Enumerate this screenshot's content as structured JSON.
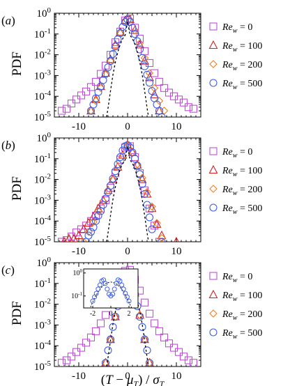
{
  "chart_data": [
    {
      "type": "scatter",
      "panel": "(a)",
      "panel_prefix": "(",
      "panel_letter": "a",
      "panel_suffix": ")",
      "ylabel": "PDF",
      "xlabel": "",
      "xlim": [
        -15,
        15
      ],
      "ylim": [
        1e-05,
        1
      ],
      "y_scale": "log",
      "x_ticks": [
        -10,
        0,
        10
      ],
      "x_tick_labels": [
        "-10",
        "0",
        "10"
      ],
      "y_ticks": [
        1,
        0.1,
        0.01,
        0.001,
        0.0001,
        1e-05
      ],
      "y_tick_labels": [
        {
          "base": "10",
          "exp": "0"
        },
        {
          "base": "10",
          "exp": "-1"
        },
        {
          "base": "10",
          "exp": "-2"
        },
        {
          "base": "10",
          "exp": "-3"
        },
        {
          "base": "10",
          "exp": "-4"
        },
        {
          "base": "10",
          "exp": "-5"
        }
      ],
      "legend_placement": "right",
      "series": [
        {
          "name": "Re_w = 0",
          "name_base": "Re",
          "name_sub": "w",
          "name_value": " = 0",
          "marker": "square",
          "color": "#bf4fd6",
          "x": [
            -13.5,
            -12.5,
            -11.5,
            -10.5,
            -9.5,
            -8.5,
            -7.5,
            -6.5,
            -5.5,
            -4.5,
            -3.5,
            -2.5,
            -1.5,
            -0.5,
            0.5,
            1.5,
            2.5,
            3.5,
            4.5,
            5.5,
            6.5,
            7.5,
            8.5,
            9.5,
            10.5,
            11.5,
            12.5,
            13.5
          ],
          "y": [
            2e-05,
            2.5e-05,
            4.5e-05,
            7e-05,
            0.00011,
            0.00017,
            0.00028,
            0.0005,
            0.0012,
            0.003,
            0.01,
            0.04,
            0.13,
            0.45,
            0.55,
            0.2,
            0.06,
            0.015,
            0.004,
            0.0013,
            0.0005,
            0.00025,
            0.00015,
            0.0001,
            7e-05,
            5e-05,
            3e-05,
            2.5e-05
          ]
        },
        {
          "name": "Re_w = 100",
          "name_base": "Re",
          "name_sub": "w",
          "name_value": " = 100",
          "marker": "triangle",
          "color": "#d61f1f",
          "x": [
            -7.5,
            -6.5,
            -5.5,
            -4.5,
            -3.5,
            -2.5,
            -1.5,
            -0.5,
            0.5,
            1.5,
            2.5,
            3.5,
            4.5,
            5.5,
            6.5
          ],
          "y": [
            2e-05,
            7e-05,
            0.0003,
            0.0013,
            0.006,
            0.03,
            0.12,
            0.45,
            0.5,
            0.15,
            0.03,
            0.005,
            0.0008,
            0.00012,
            2e-05
          ]
        },
        {
          "name": "Re_w = 200",
          "name_base": "Re",
          "name_sub": "w",
          "name_value": " = 200",
          "marker": "diamond",
          "color": "#f08020",
          "x": [
            -7.5,
            -6.5,
            -5.5,
            -4.5,
            -3.5,
            -2.5,
            -1.5,
            -0.5,
            0.5,
            1.5,
            2.5,
            3.5,
            4.5,
            5.5,
            6.5,
            7.5
          ],
          "y": [
            2e-05,
            6e-05,
            0.00025,
            0.0011,
            0.005,
            0.026,
            0.11,
            0.42,
            0.48,
            0.15,
            0.035,
            0.007,
            0.0013,
            0.00025,
            6e-05,
            2e-05
          ]
        },
        {
          "name": "Re_w = 500",
          "name_base": "Re",
          "name_sub": "w",
          "name_value": " = 500",
          "marker": "circle",
          "color": "#3d5ee8",
          "x": [
            -7.5,
            -7.0,
            -6.5,
            -6.0,
            -5.5,
            -5.0,
            -4.5,
            -4.0,
            -3.5,
            -3.0,
            -2.5,
            -2.0,
            -1.5,
            -1.0,
            -0.5,
            0.0,
            0.5,
            1.0,
            1.5,
            2.0,
            2.5,
            3.0,
            3.5,
            4.0,
            4.5,
            5.0,
            5.5,
            6.0,
            6.5,
            7.0
          ],
          "y": [
            2e-05,
            4e-05,
            8e-05,
            0.00016,
            0.0003,
            0.0006,
            0.0012,
            0.0025,
            0.005,
            0.011,
            0.025,
            0.055,
            0.11,
            0.22,
            0.38,
            0.5,
            0.38,
            0.2,
            0.1,
            0.045,
            0.018,
            0.007,
            0.0028,
            0.0011,
            0.00045,
            0.00018,
            8e-05,
            4e-05,
            2e-05,
            1e-05
          ]
        },
        {
          "name": "",
          "marker": "dashed-line",
          "color": "#000000",
          "x": [
            -4.3,
            -4.0,
            -3.5,
            -3.0,
            -2.5,
            -2.0,
            -1.5,
            -1.0,
            -0.5,
            0.0,
            0.5,
            1.0,
            1.5,
            2.0,
            2.5,
            3.0,
            3.5,
            4.0,
            4.3
          ],
          "y": [
            1e-05,
            2.7e-05,
            0.00018,
            0.0011,
            0.0044,
            0.0135,
            0.032,
            0.06,
            0.087,
            0.4,
            0.087,
            0.06,
            0.032,
            0.0135,
            0.0044,
            0.0011,
            0.00018,
            2.7e-05,
            1e-05
          ]
        }
      ]
    },
    {
      "type": "scatter",
      "panel": "(b)",
      "panel_prefix": "(",
      "panel_letter": "b",
      "panel_suffix": ")",
      "ylabel": "PDF",
      "xlabel": "",
      "xlim": [
        -15,
        15
      ],
      "ylim": [
        1e-05,
        1
      ],
      "y_scale": "log",
      "x_ticks": [
        -10,
        0,
        10
      ],
      "x_tick_labels": [
        "-10",
        "0",
        "10"
      ],
      "y_ticks": [
        1,
        0.1,
        0.01,
        0.001,
        0.0001,
        1e-05
      ],
      "y_tick_labels": [
        {
          "base": "10",
          "exp": "0"
        },
        {
          "base": "10",
          "exp": "-1"
        },
        {
          "base": "10",
          "exp": "-2"
        },
        {
          "base": "10",
          "exp": "-3"
        },
        {
          "base": "10",
          "exp": "-4"
        },
        {
          "base": "10",
          "exp": "-5"
        }
      ],
      "legend_placement": "right",
      "series": [
        {
          "name": "Re_w = 0",
          "name_base": "Re",
          "name_sub": "w",
          "name_value": " = 0",
          "marker": "square",
          "color": "#bf4fd6",
          "x": [
            -13.5,
            -12.5,
            -11.5,
            -10.5,
            -9.5,
            -8.5,
            -7.5,
            -6.5,
            -5.5,
            -4.5,
            -3.5,
            -2.5,
            -1.5,
            -0.5,
            0.5,
            1.5,
            2.5,
            3.5,
            4.5,
            5.5,
            6.5
          ],
          "y": [
            1e-05,
            1.2e-05,
            1.8e-05,
            2.8e-05,
            4e-05,
            6e-05,
            0.0001,
            0.00018,
            0.0004,
            0.001,
            0.004,
            0.02,
            0.09,
            0.35,
            0.4,
            0.12,
            0.02,
            0.003,
            0.0004,
            6e-05,
            1e-05
          ]
        },
        {
          "name": "Re_w = 100",
          "name_base": "Re",
          "name_sub": "w",
          "name_value": " = 100",
          "marker": "triangle",
          "color": "#d61f1f",
          "x": [
            -13.0,
            -12.0,
            -11.0,
            -10.0,
            -9.0,
            -8.0,
            -7.0,
            -6.0,
            -5.0,
            -4.0,
            -3.0,
            -2.0,
            -1.0,
            0.0,
            1.0,
            2.0,
            3.0,
            4.0,
            5.0,
            6.0,
            7.0,
            10.0
          ],
          "y": [
            1e-05,
            1.4e-05,
            1.4e-05,
            2e-05,
            4e-05,
            8e-05,
            0.00016,
            0.0004,
            0.001,
            0.003,
            0.01,
            0.04,
            0.15,
            0.45,
            0.2,
            0.05,
            0.01,
            0.002,
            0.0004,
            7e-05,
            2e-05,
            1e-05
          ]
        },
        {
          "name": "Re_w = 200",
          "name_base": "Re",
          "name_sub": "w",
          "name_value": " = 200",
          "marker": "diamond",
          "color": "#f08020",
          "x": [
            -9.0,
            -8.0,
            -7.0,
            -6.0,
            -5.0,
            -4.0,
            -3.0,
            -2.0,
            -1.0,
            0.0,
            1.0,
            2.0,
            3.0,
            4.0,
            5.0,
            6.0,
            7.0
          ],
          "y": [
            1e-05,
            3e-05,
            9e-05,
            0.0003,
            0.0009,
            0.003,
            0.01,
            0.04,
            0.14,
            0.42,
            0.2,
            0.055,
            0.012,
            0.0025,
            0.0005,
            8e-05,
            1.5e-05
          ]
        },
        {
          "name": "Re_w = 500",
          "name_base": "Re",
          "name_sub": "w",
          "name_value": " = 500",
          "marker": "circle",
          "color": "#3d5ee8",
          "x": [
            -8.5,
            -8.0,
            -7.5,
            -7.0,
            -6.5,
            -6.0,
            -5.5,
            -5.0,
            -4.5,
            -4.0,
            -3.5,
            -3.0,
            -2.5,
            -2.0,
            -1.5,
            -1.0,
            -0.5,
            0.0,
            0.5,
            1.0,
            1.5,
            2.0,
            2.5,
            3.0,
            3.5,
            4.0,
            4.5,
            5.0,
            7.0
          ],
          "y": [
            1e-05,
            2e-05,
            3e-05,
            5e-05,
            0.0001,
            0.00018,
            0.0003,
            0.0006,
            0.0012,
            0.0025,
            0.005,
            0.011,
            0.025,
            0.055,
            0.12,
            0.25,
            0.4,
            0.45,
            0.35,
            0.2,
            0.1,
            0.045,
            0.018,
            0.006,
            0.002,
            0.0006,
            0.00015,
            4e-05,
            1e-05
          ]
        },
        {
          "name": "",
          "marker": "dashed-line",
          "color": "#000000",
          "x": [
            -4.3,
            -4.0,
            -3.5,
            -3.0,
            -2.5,
            -2.0,
            -1.5,
            -1.0,
            -0.5,
            0.0,
            0.5,
            1.0,
            1.5,
            2.0,
            2.5,
            3.0,
            3.5,
            4.0,
            4.3
          ],
          "y": [
            1e-05,
            2.7e-05,
            0.00018,
            0.0011,
            0.0044,
            0.0135,
            0.032,
            0.06,
            0.087,
            0.4,
            0.087,
            0.06,
            0.032,
            0.0135,
            0.0044,
            0.0011,
            0.00018,
            2.7e-05,
            1e-05
          ]
        }
      ]
    },
    {
      "type": "scatter",
      "panel": "(c)",
      "panel_prefix": "(",
      "panel_letter": "c",
      "panel_suffix": ")",
      "ylabel": "PDF",
      "xlabel": "(T - μ_T) / σ_T",
      "xlim": [
        -15,
        15
      ],
      "ylim": [
        1e-05,
        1
      ],
      "y_scale": "log",
      "x_ticks": [
        -10,
        0,
        10
      ],
      "x_tick_labels": [
        "-10",
        "0",
        "10"
      ],
      "y_ticks": [
        1,
        0.1,
        0.01,
        0.001,
        0.0001,
        1e-05
      ],
      "y_tick_labels": [
        {
          "base": "10",
          "exp": "0"
        },
        {
          "base": "10",
          "exp": "-1"
        },
        {
          "base": "10",
          "exp": "-2"
        },
        {
          "base": "10",
          "exp": "-3"
        },
        {
          "base": "10",
          "exp": "-4"
        },
        {
          "base": "10",
          "exp": "-5"
        }
      ],
      "legend_placement": "right",
      "inset": {
        "xlim": [
          -3,
          3
        ],
        "ylim": [
          0.03,
          1.5
        ],
        "y_scale": "log",
        "x_ticks": [
          -2,
          0,
          2
        ],
        "x_tick_labels": [
          "-2",
          "0",
          "2"
        ],
        "y_ticks": [
          1,
          0.1
        ],
        "y_tick_labels": [
          {
            "base": "10",
            "exp": "0"
          },
          {
            "base": "10",
            "exp": "-1"
          }
        ],
        "series_x": [
          -2.0,
          -1.8,
          -1.6,
          -1.4,
          -1.2,
          -1.0,
          -0.8,
          -0.6,
          -0.4,
          -0.2,
          0.0,
          0.2,
          0.4,
          0.6,
          0.8,
          1.0,
          1.2,
          1.4,
          1.6,
          1.8,
          2.0
        ],
        "series_y": [
          0.06,
          0.09,
          0.13,
          0.2,
          0.3,
          0.45,
          0.5,
          0.35,
          0.2,
          0.12,
          0.1,
          0.12,
          0.2,
          0.35,
          0.5,
          0.45,
          0.3,
          0.2,
          0.13,
          0.09,
          0.06
        ]
      },
      "series": [
        {
          "name": "Re_w = 0",
          "name_base": "Re",
          "name_sub": "w",
          "name_value": " = 0",
          "marker": "square",
          "color": "#bf4fd6",
          "x": [
            -13.5,
            -12.5,
            -11.5,
            -10.5,
            -9.5,
            -8.5,
            -7.5,
            -6.5,
            -5.5,
            -4.5,
            -3.5,
            -2.5,
            -1.5,
            -0.5,
            0.5,
            1.5,
            2.5,
            3.5,
            4.5,
            5.5,
            6.5,
            7.5,
            8.5,
            9.5,
            10.5,
            11.5,
            12.5,
            13.5
          ],
          "y": [
            1.5e-05,
            2e-05,
            3e-05,
            5e-05,
            8e-05,
            0.00014,
            0.00025,
            0.0005,
            0.0012,
            0.003,
            0.01,
            0.04,
            0.13,
            0.4,
            0.45,
            0.15,
            0.045,
            0.012,
            0.0035,
            0.0012,
            0.0005,
            0.00025,
            0.00013,
            8e-05,
            5e-05,
            3e-05,
            2e-05,
            1.5e-05
          ]
        },
        {
          "name": "Re_w = 100",
          "name_base": "Re",
          "name_sub": "w",
          "name_value": " = 100",
          "marker": "triangle",
          "color": "#d61f1f",
          "x": [
            -4.5,
            -3.5,
            -2.5,
            -1.5,
            -0.5,
            0.5,
            1.5,
            2.5,
            3.5,
            4.5
          ],
          "y": [
            1.5e-05,
            0.0002,
            0.0025,
            0.03,
            0.25,
            0.3,
            0.035,
            0.003,
            0.0002,
            1.5e-05
          ]
        },
        {
          "name": "Re_w = 200",
          "name_base": "Re",
          "name_sub": "w",
          "name_value": " = 200",
          "marker": "diamond",
          "color": "#f08020",
          "x": [
            -4.5,
            -3.5,
            -2.5,
            -1.5,
            -0.5,
            0.5,
            1.5,
            2.5,
            3.5,
            4.5
          ],
          "y": [
            1.5e-05,
            0.0002,
            0.0025,
            0.03,
            0.25,
            0.3,
            0.035,
            0.003,
            0.0002,
            1.5e-05
          ]
        },
        {
          "name": "Re_w = 500",
          "name_base": "Re",
          "name_sub": "w",
          "name_value": " = 500",
          "marker": "circle",
          "color": "#3d5ee8",
          "x": [
            -4.5,
            -4.0,
            -3.5,
            -3.0,
            -2.5,
            -2.0,
            -1.5,
            -1.0,
            -0.5,
            0.0,
            0.5,
            1.0,
            1.5,
            2.0,
            2.5,
            3.0,
            3.5,
            4.0,
            4.5
          ],
          "y": [
            1.5e-05,
            6e-05,
            0.0002,
            0.0008,
            0.0025,
            0.008,
            0.03,
            0.08,
            0.15,
            0.12,
            0.15,
            0.08,
            0.03,
            0.008,
            0.0025,
            0.0008,
            0.0002,
            6e-05,
            1.5e-05
          ]
        },
        {
          "name": "",
          "marker": "dashed-line",
          "color": "#000000",
          "x": [
            -4.3,
            -4.0,
            -3.5,
            -3.0,
            -2.5,
            -2.0,
            -1.5,
            -1.0,
            -0.5,
            0.0,
            0.5,
            1.0,
            1.5,
            2.0,
            2.5,
            3.0,
            3.5,
            4.0,
            4.3
          ],
          "y": [
            1e-05,
            2.7e-05,
            0.00018,
            0.0011,
            0.0044,
            0.0135,
            0.032,
            0.06,
            0.087,
            0.4,
            0.087,
            0.06,
            0.032,
            0.0135,
            0.0044,
            0.0011,
            0.00018,
            2.7e-05,
            1e-05
          ]
        }
      ]
    }
  ],
  "xlabel_parts": {
    "open": "(",
    "T": "T",
    "minus": " − ",
    "mu": "μ",
    "mu_sub": "T",
    "close": ")",
    "slash": " / ",
    "sigma": "σ",
    "sigma_sub": "T"
  }
}
